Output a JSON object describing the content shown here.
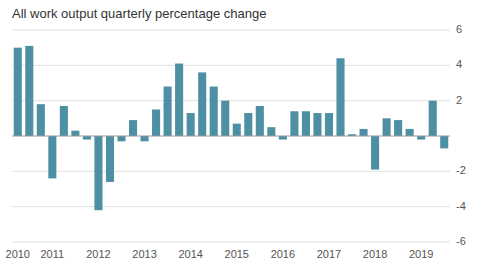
{
  "chart_data": {
    "type": "bar",
    "title": "All work output quarterly percentage change",
    "categories": [
      "2010",
      null,
      null,
      "2011",
      null,
      null,
      null,
      "2012",
      null,
      null,
      null,
      "2013",
      null,
      null,
      null,
      "2014",
      null,
      null,
      null,
      "2015",
      null,
      null,
      null,
      "2016",
      null,
      null,
      null,
      "2017",
      null,
      null,
      null,
      "2018",
      null,
      null,
      null,
      "2019",
      null,
      null
    ],
    "values": [
      5.0,
      5.1,
      1.8,
      -2.4,
      1.7,
      0.3,
      -0.2,
      -4.2,
      -2.6,
      -0.3,
      0.9,
      -0.3,
      1.5,
      2.8,
      4.1,
      1.3,
      3.6,
      2.8,
      2.0,
      0.7,
      1.3,
      1.7,
      0.5,
      -0.2,
      1.4,
      1.4,
      1.3,
      1.3,
      4.4,
      0.1,
      0.4,
      -1.9,
      1.0,
      0.9,
      0.4,
      -0.2,
      2.0,
      -0.7
    ],
    "color": "#4d8fa3",
    "ylim": [
      -6,
      6
    ],
    "yticks": [
      -6,
      -4,
      -2,
      2,
      4,
      6
    ],
    "grid": true
  }
}
